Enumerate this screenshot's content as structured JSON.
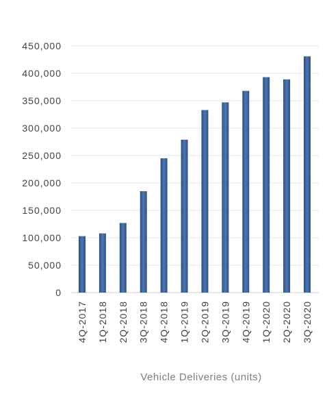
{
  "chart_data": {
    "type": "bar",
    "title": "",
    "xlabel": "Vehicle Deliveries (units)",
    "ylabel": "",
    "categories": [
      "4Q-2017",
      "1Q-2018",
      "2Q-2018",
      "3Q-2018",
      "4Q-2018",
      "1Q-2019",
      "2Q-2019",
      "3Q-2019",
      "4Q-2019",
      "1Q-2020",
      "2Q-2020",
      "3Q-2020"
    ],
    "values": [
      103000,
      108000,
      127000,
      185000,
      245000,
      279000,
      333000,
      347000,
      368000,
      393000,
      389000,
      431000
    ],
    "ylim": [
      0,
      450000
    ],
    "yticks": [
      0,
      50000,
      100000,
      150000,
      200000,
      250000,
      300000,
      350000,
      400000,
      450000
    ],
    "ytick_labels": [
      "0",
      "50,000",
      "100,000",
      "150,000",
      "200,000",
      "250,000",
      "300,000",
      "350,000",
      "400,000",
      "450,000"
    ],
    "grid": true,
    "legend": "none",
    "colors": {
      "bar_edge": "#2f4f7f",
      "bar_center": "#4a78b6",
      "grid": "#e6e6e6",
      "axis": "#d0d0d0"
    }
  }
}
